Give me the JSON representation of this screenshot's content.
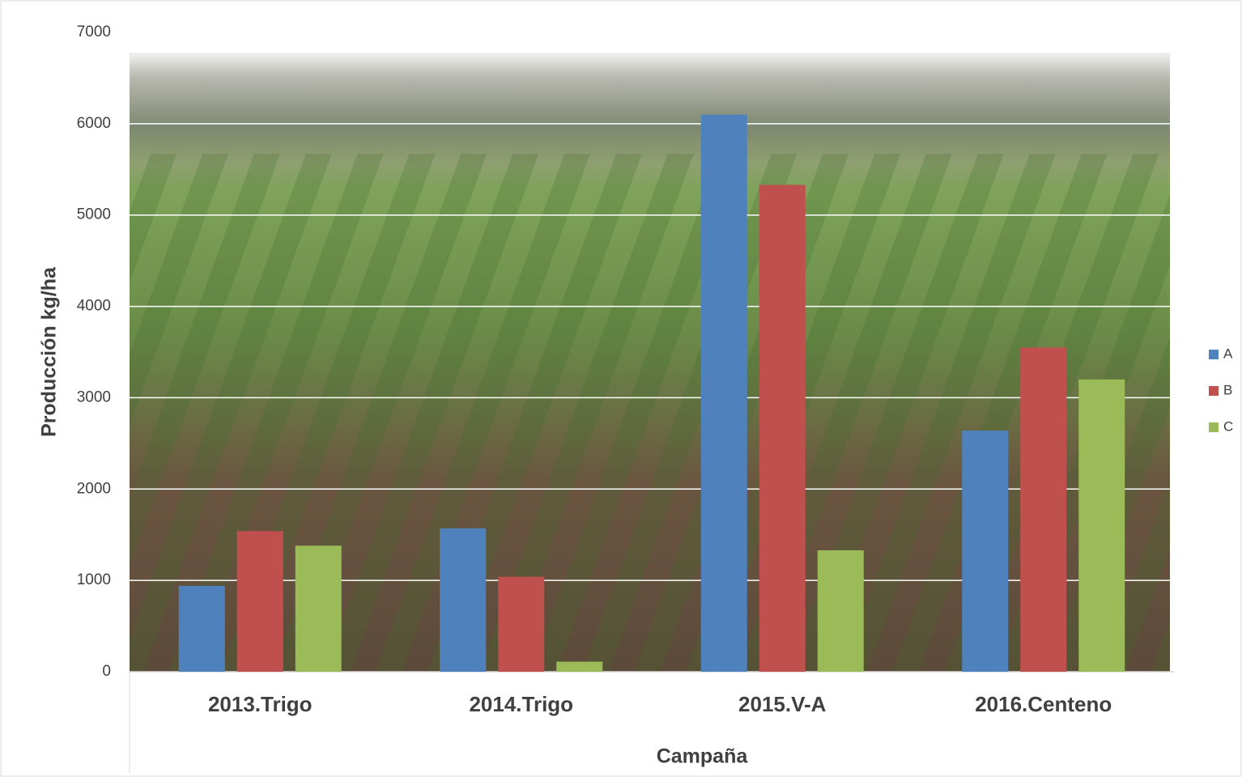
{
  "chart_data": {
    "type": "bar",
    "categories": [
      "2013.Trigo",
      "2014.Trigo",
      "2015.V-A",
      "2016.Centeno"
    ],
    "series": [
      {
        "name": "A",
        "color": "#4f81bd",
        "values": [
          940,
          1570,
          6100,
          2640
        ]
      },
      {
        "name": "B",
        "color": "#c0504d",
        "values": [
          1540,
          1040,
          5330,
          3550
        ]
      },
      {
        "name": "C",
        "color": "#9bbb59",
        "values": [
          1380,
          110,
          1330,
          3200
        ]
      }
    ],
    "x_label": "Campaña",
    "y_label": "Producción kg/ha",
    "ylim": [
      0,
      7000
    ],
    "yticks": [
      0,
      1000,
      2000,
      3000,
      4000,
      5000,
      6000,
      7000
    ],
    "grid": true,
    "legend": "right"
  }
}
